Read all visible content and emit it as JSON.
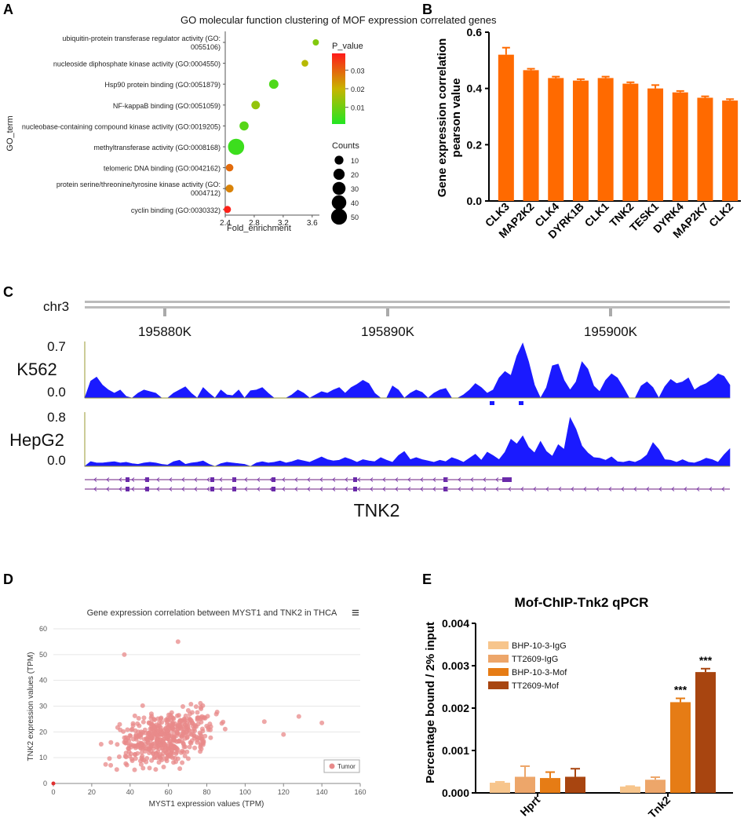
{
  "panel_labels": [
    "A",
    "B",
    "C",
    "D",
    "E"
  ],
  "chart_data": [
    {
      "panel": "A",
      "type": "scatter",
      "title": "GO molecular function clustering of MOF expression correlated genes",
      "xlabel": "Fold_enrichment",
      "ylabel": "GO_term",
      "xlim": [
        2.4,
        3.7
      ],
      "xticks": [
        "2.4",
        "2.8",
        "3.2",
        "3.6"
      ],
      "xtick_values": [
        2.4,
        2.8,
        3.2,
        3.6
      ],
      "categories": [
        "ubiquitin-protein transferase regulator activity (GO:|0055106)",
        "nucleoside diphosphate kinase activity (GO:0004550)",
        "Hsp90 protein binding (GO:0051879)",
        "NF-kappaB binding (GO:0051059)",
        "nucleobase-containing compound kinase activity (GO:0019205)",
        "methyltransferase activity (GO:0008168)",
        "telomeric DNA binding (GO:0042162)",
        "protein serine/threonine/tyrosine kinase activity (GO:|0004712)",
        "cyclin binding (GO:0030332)"
      ],
      "fold_enrichment": [
        3.65,
        3.5,
        3.07,
        2.82,
        2.66,
        2.55,
        2.46,
        2.46,
        2.43
      ],
      "counts": [
        3,
        4,
        12,
        9,
        11,
        52,
        6,
        7,
        5
      ],
      "p_values": [
        0.012,
        0.018,
        0.006,
        0.014,
        0.007,
        0.004,
        0.029,
        0.026,
        0.038
      ],
      "legend_pvalue_title": "P_value",
      "legend_pvalue_ticks": [
        "0.03",
        "0.02",
        "0.01"
      ],
      "legend_pvalue_tick_values": [
        0.03,
        0.02,
        0.01
      ],
      "pvalue_range": [
        0.001,
        0.039
      ],
      "legend_counts_title": "Counts",
      "legend_counts": [
        10,
        20,
        30,
        40,
        50
      ],
      "colors": {
        "high": "#ff1a1a",
        "mid": "#c8b400",
        "low": "#22e622"
      }
    },
    {
      "panel": "B",
      "type": "bar",
      "ylabel": "Gene expression correlation|pearson value",
      "ylim": [
        0,
        0.6
      ],
      "yticks": [
        "0.0",
        "0.2",
        "0.4",
        "0.6"
      ],
      "ytick_values": [
        0,
        0.2,
        0.4,
        0.6
      ],
      "categories": [
        "CLK3",
        "MAP2K2",
        "CLK4",
        "DYRK1B",
        "CLK1",
        "TNK2",
        "TESK1",
        "DYRK4",
        "MAP2K7",
        "CLK2"
      ],
      "values": [
        0.52,
        0.465,
        0.437,
        0.428,
        0.437,
        0.417,
        0.4,
        0.386,
        0.367,
        0.357
      ],
      "errors": [
        0.025,
        0.005,
        0.005,
        0.005,
        0.005,
        0.005,
        0.012,
        0.005,
        0.005,
        0.005
      ],
      "color": "#ff6a00"
    },
    {
      "panel": "C",
      "type": "area",
      "chrom_label": "chr3",
      "ticks": [
        "195880K",
        "195890K",
        "195900K"
      ],
      "tracks": [
        {
          "name": "K562",
          "ymax_label": "0.7",
          "ymin_label": "0.0",
          "ymax": 0.7,
          "values": [
            0.0,
            0.21,
            0.26,
            0.16,
            0.1,
            0.06,
            0.1,
            0.02,
            0.0,
            0.06,
            0.1,
            0.08,
            0.06,
            0.0,
            0.0,
            0.06,
            0.1,
            0.14,
            0.06,
            0.0,
            0.13,
            0.06,
            0.0,
            0.1,
            0.04,
            0.03,
            0.1,
            0.0,
            0.09,
            0.1,
            0.13,
            0.06,
            0.0,
            0.0,
            0.0,
            0.04,
            0.1,
            0.06,
            0.0,
            0.04,
            0.08,
            0.06,
            0.1,
            0.13,
            0.06,
            0.13,
            0.17,
            0.22,
            0.18,
            0.06,
            0.0,
            0.0,
            0.15,
            0.1,
            0.0,
            0.06,
            0.1,
            0.07,
            0.0,
            0.06,
            0.1,
            0.12,
            0.0,
            0.0,
            0.04,
            0.1,
            0.18,
            0.13,
            0.06,
            0.1,
            0.25,
            0.33,
            0.28,
            0.52,
            0.68,
            0.45,
            0.16,
            0.0,
            0.13,
            0.4,
            0.42,
            0.22,
            0.1,
            0.2,
            0.45,
            0.36,
            0.15,
            0.08,
            0.22,
            0.3,
            0.25,
            0.13,
            0.0,
            0.0,
            0.15,
            0.2,
            0.13,
            0.0,
            0.14,
            0.23,
            0.18,
            0.2,
            0.25,
            0.1,
            0.15,
            0.18,
            0.23,
            0.3,
            0.27,
            0.16
          ]
        },
        {
          "name": "HepG2",
          "ymax_label": "0.8",
          "ymin_label": "0.0",
          "ymax": 0.8,
          "values": [
            0.0,
            0.07,
            0.05,
            0.05,
            0.06,
            0.07,
            0.05,
            0.06,
            0.04,
            0.03,
            0.05,
            0.06,
            0.05,
            0.03,
            0.02,
            0.07,
            0.09,
            0.03,
            0.05,
            0.06,
            0.08,
            0.03,
            0.0,
            0.04,
            0.06,
            0.05,
            0.04,
            0.03,
            0.0,
            0.05,
            0.07,
            0.05,
            0.06,
            0.08,
            0.05,
            0.07,
            0.1,
            0.08,
            0.06,
            0.1,
            0.14,
            0.1,
            0.08,
            0.09,
            0.13,
            0.1,
            0.06,
            0.1,
            0.08,
            0.07,
            0.13,
            0.09,
            0.06,
            0.16,
            0.22,
            0.1,
            0.13,
            0.1,
            0.08,
            0.06,
            0.09,
            0.07,
            0.13,
            0.1,
            0.06,
            0.12,
            0.18,
            0.09,
            0.21,
            0.16,
            0.1,
            0.21,
            0.4,
            0.33,
            0.45,
            0.28,
            0.2,
            0.37,
            0.22,
            0.15,
            0.32,
            0.25,
            0.72,
            0.55,
            0.3,
            0.2,
            0.13,
            0.12,
            0.09,
            0.14,
            0.07,
            0.06,
            0.08,
            0.06,
            0.1,
            0.17,
            0.35,
            0.25,
            0.1,
            0.09,
            0.06,
            0.1,
            0.06,
            0.05,
            0.08,
            0.12,
            0.1,
            0.06,
            0.17,
            0.26
          ]
        }
      ],
      "gene_label": "TNK2",
      "track_color": "#1a1aff"
    },
    {
      "panel": "D",
      "type": "scatter",
      "title": "Gene expression correlation between MYST1 and TNK2 in THCA",
      "xlabel": "MYST1 expression values (TPM)",
      "ylabel": "TNK2 expression values (TPM)",
      "xlim": [
        0,
        160
      ],
      "ylim": [
        0,
        60
      ],
      "xticks": [
        "0",
        "20",
        "40",
        "60",
        "80",
        "100",
        "120",
        "140",
        "160"
      ],
      "xtick_values": [
        0,
        20,
        40,
        60,
        80,
        100,
        120,
        140,
        160
      ],
      "yticks": [
        "0",
        "10",
        "20",
        "30",
        "40",
        "50",
        "60"
      ],
      "ytick_values": [
        0,
        10,
        20,
        30,
        40,
        50,
        60
      ],
      "legend": [
        "Tumor"
      ],
      "menu_icon": "hamburger-menu-icon",
      "point_count": 500,
      "seed": 7,
      "outliers": [
        [
          37,
          50
        ],
        [
          65,
          55
        ],
        [
          110,
          24
        ],
        [
          140,
          23.5
        ],
        [
          128,
          26
        ],
        [
          120,
          19
        ]
      ],
      "color": "#e88a8a"
    },
    {
      "panel": "E",
      "type": "bar",
      "title": "Mof-ChIP-Tnk2 qPCR",
      "ylabel": "Percentage bound / 2% input",
      "ylim": [
        0,
        0.004
      ],
      "yticks": [
        "0.000",
        "0.001",
        "0.002",
        "0.003",
        "0.004"
      ],
      "ytick_values": [
        0,
        0.001,
        0.002,
        0.003,
        0.004
      ],
      "categories": [
        "Hprt",
        "Tnk2"
      ],
      "series": [
        {
          "name": "BHP-10-3-IgG",
          "values": [
            0.00024,
            0.00015
          ],
          "errors": [
            2e-05,
            1e-05
          ],
          "color": "#f7c58c"
        },
        {
          "name": "TT2609-IgG",
          "values": [
            0.00038,
            0.00031
          ],
          "errors": [
            0.00025,
            6e-05
          ],
          "color": "#eda66a"
        },
        {
          "name": "BHP-10-3-Mof",
          "values": [
            0.00035,
            0.00214
          ],
          "errors": [
            0.00014,
            9e-05
          ],
          "color": "#e67c15"
        },
        {
          "name": "TT2609-Mof",
          "values": [
            0.00038,
            0.00285
          ],
          "errors": [
            0.00019,
            8e-05
          ],
          "color": "#a84510"
        }
      ],
      "annotations": [
        "***",
        "***"
      ]
    }
  ]
}
